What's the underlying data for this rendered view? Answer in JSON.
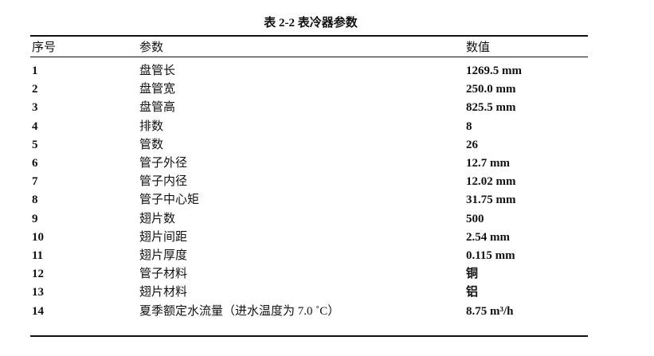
{
  "title": "表 2-2  表冷器参数",
  "headers": [
    "序号",
    "参数",
    "数值"
  ],
  "rows": [
    {
      "no": "1",
      "param": "盘管长",
      "value": "1269.5 mm"
    },
    {
      "no": "2",
      "param": "盘管宽",
      "value": "250.0 mm"
    },
    {
      "no": "3",
      "param": "盘管高",
      "value": "825.5 mm"
    },
    {
      "no": "4",
      "param": "排数",
      "value": "8"
    },
    {
      "no": "5",
      "param": "管数",
      "value": "26"
    },
    {
      "no": "6",
      "param": "管子外径",
      "value": "12.7 mm"
    },
    {
      "no": "7",
      "param": "管子内径",
      "value": "12.02 mm"
    },
    {
      "no": "8",
      "param": "管子中心矩",
      "value": "31.75 mm"
    },
    {
      "no": "9",
      "param": "翅片数",
      "value": "500"
    },
    {
      "no": "10",
      "param": "翅片间距",
      "value": "2.54 mm"
    },
    {
      "no": "11",
      "param": "翅片厚度",
      "value": "0.115 mm"
    },
    {
      "no": "12",
      "param": "管子材料",
      "value": "铜"
    },
    {
      "no": "13",
      "param": "翅片材料",
      "value": "铝"
    },
    {
      "no": "14",
      "param": "夏季额定水流量（进水温度为 7.0 ˚C）",
      "value": "8.75 m³/h"
    }
  ]
}
